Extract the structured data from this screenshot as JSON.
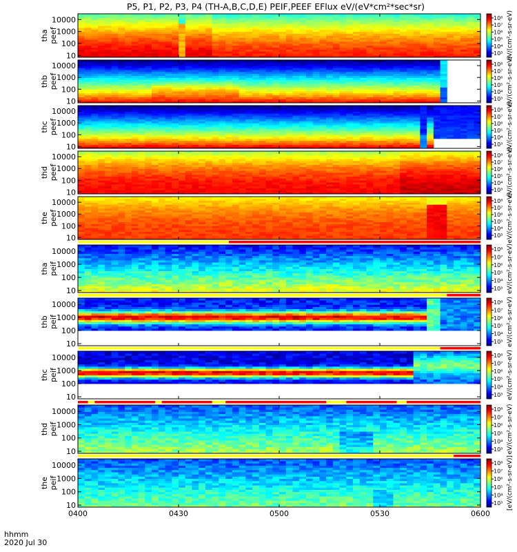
{
  "title": "P5, P1, P2, P3, P4 (TH-A,B,C,D,E) PEIF,PEEF EFlux eV/(eV*cm²*sec*sr)",
  "time_axis": {
    "label_line1": "hhmm",
    "label_line2": "2020 Jul 30",
    "ticks": [
      "0400",
      "0430",
      "0500",
      "0530",
      "0600"
    ]
  },
  "colors": {
    "scale": [
      "#000080",
      "#0000ff",
      "#0080ff",
      "#00ffff",
      "#80ff80",
      "#ffff00",
      "#ff8000",
      "#ff0000",
      "#800000"
    ],
    "flag_red": "#ff0000",
    "flag_yellow": "#ffff00"
  },
  "chart_data": [
    {
      "type": "heatmap",
      "ylabel": "tha\npeef",
      "y_ticks": [
        "10000",
        "1000",
        "100",
        "10"
      ],
      "yscale": "log",
      "ylim_eV": [
        7,
        30000
      ],
      "colorbar_ticks": [
        "10⁸",
        "10⁷",
        "10⁶",
        "10⁵",
        "10⁴",
        "10³"
      ],
      "colorbar_label": "eV/(cm²-s-sr-eV)",
      "time_range": [
        "0400",
        "0600"
      ]
    },
    {
      "type": "heatmap",
      "ylabel": "thb\npeef",
      "y_ticks": [
        "10000",
        "1000",
        "100",
        "10"
      ],
      "yscale": "log",
      "ylim_eV": [
        7,
        30000
      ],
      "colorbar_ticks": [
        "10⁸",
        "10⁷",
        "10⁶",
        "10⁵",
        "10⁴",
        "10³"
      ],
      "colorbar_label": "eV/(cm²-s-sr-eV)",
      "time_range": [
        "0400",
        "0600"
      ]
    },
    {
      "type": "heatmap",
      "ylabel": "thc\npeef",
      "y_ticks": [
        "10000",
        "1000",
        "100",
        "10"
      ],
      "yscale": "log",
      "ylim_eV": [
        7,
        30000
      ],
      "colorbar_ticks": [
        "10⁸",
        "10⁷",
        "10⁶",
        "10⁵",
        "10⁴",
        "10³"
      ],
      "colorbar_label": "eV/(cm²-s-sr-eV)",
      "time_range": [
        "0400",
        "0600"
      ]
    },
    {
      "type": "heatmap",
      "ylabel": "thd\npeef",
      "y_ticks": [
        "10000",
        "1000",
        "100",
        "10"
      ],
      "yscale": "log",
      "ylim_eV": [
        7,
        30000
      ],
      "colorbar_ticks": [
        "10⁸",
        "10⁷",
        "10⁶",
        "10⁵",
        "10⁴",
        "10³"
      ],
      "colorbar_label": "eV/(cm²-s-sr-eV)",
      "time_range": [
        "0400",
        "0600"
      ]
    },
    {
      "type": "heatmap",
      "ylabel": "the\npeef",
      "y_ticks": [
        "10000",
        "1000",
        "100",
        "10"
      ],
      "yscale": "log",
      "ylim_eV": [
        7,
        30000
      ],
      "colorbar_ticks": [
        "10⁸",
        "10⁷",
        "10⁶",
        "10⁵",
        "10⁴",
        "10³"
      ],
      "colorbar_label": "eV/(cm²-s-sr-eV)",
      "time_range": [
        "0400",
        "0600"
      ]
    },
    {
      "type": "heatmap",
      "ylabel": "tha\npeif",
      "y_ticks": [
        "10000",
        "1000",
        "100",
        "10"
      ],
      "yscale": "log",
      "ylim_eV": [
        7,
        30000
      ],
      "colorbar_ticks": [
        "10⁸",
        "10⁷",
        "10⁶",
        "10⁵",
        "10⁴",
        "10³"
      ],
      "colorbar_label": "eV/(cm²-s-sr-eV)",
      "time_range": [
        "0400",
        "0600"
      ]
    },
    {
      "type": "heatmap",
      "ylabel": "thb\npeif",
      "y_ticks": [
        "10000",
        "1000",
        "100",
        "10"
      ],
      "yscale": "log",
      "ylim_eV": [
        7,
        30000
      ],
      "colorbar_ticks": [
        "10⁸",
        "10⁷",
        "10⁶",
        "10⁵",
        "10⁴",
        "10³"
      ],
      "colorbar_label": "eV/(cm²-s-sr-eV)",
      "time_range": [
        "0400",
        "0600"
      ]
    },
    {
      "type": "heatmap",
      "ylabel": "thc\npeif",
      "y_ticks": [
        "10000",
        "1000",
        "100",
        "10"
      ],
      "yscale": "log",
      "ylim_eV": [
        7,
        30000
      ],
      "colorbar_ticks": [
        "10⁸",
        "10⁷",
        "10⁶",
        "10⁵",
        "10⁴",
        "10³"
      ],
      "colorbar_label": "eV/(cm²-s-sr-eV)",
      "time_range": [
        "0400",
        "0600"
      ]
    },
    {
      "type": "heatmap",
      "ylabel": "thd\npeif",
      "y_ticks": [
        "10000",
        "1000",
        "100",
        "10"
      ],
      "yscale": "log",
      "ylim_eV": [
        7,
        30000
      ],
      "colorbar_ticks": [
        "10⁸",
        "10⁷",
        "10⁶",
        "10⁵",
        "10⁴",
        "10³"
      ],
      "colorbar_label": "eV/(cm²-s-sr-eV)",
      "time_range": [
        "0400",
        "0600"
      ]
    },
    {
      "type": "heatmap",
      "ylabel": "the\npeif",
      "y_ticks": [
        "10000",
        "1000",
        "100",
        "10"
      ],
      "yscale": "log",
      "ylim_eV": [
        7,
        30000
      ],
      "colorbar_ticks": [
        "10⁸",
        "10⁷",
        "10⁶",
        "10⁵",
        "10⁴",
        "10³"
      ],
      "colorbar_label": "[eV/(cm²-s-sr-eV)]",
      "time_range": [
        "0400",
        "0600"
      ]
    }
  ]
}
